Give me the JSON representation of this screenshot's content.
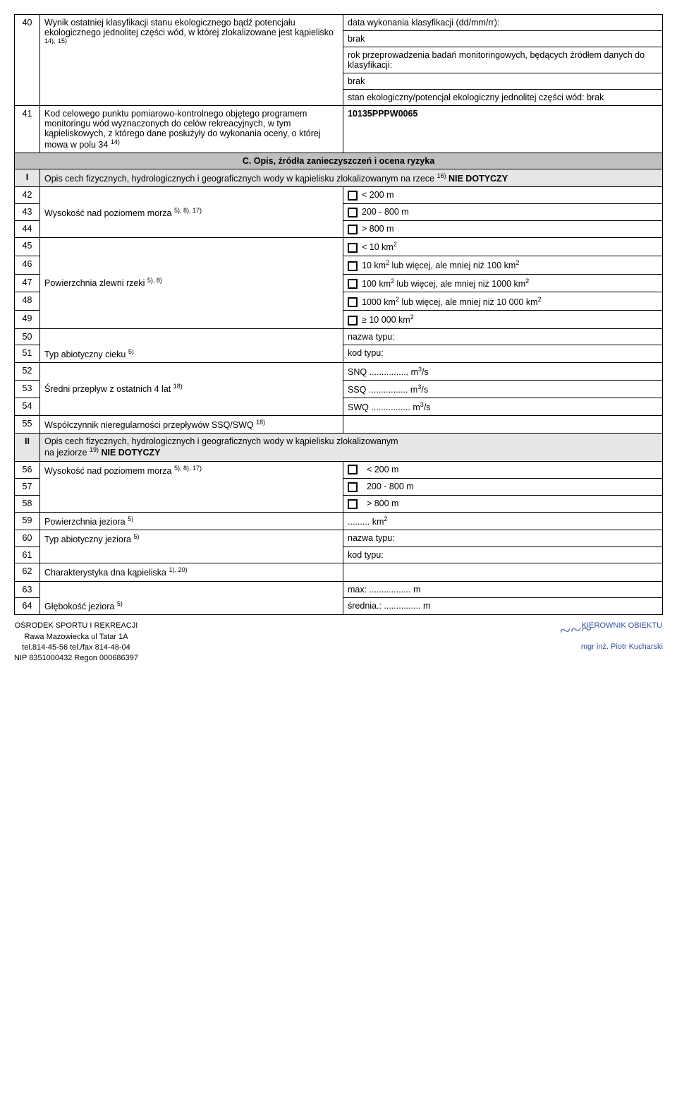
{
  "rows": {
    "r40": {
      "num": "40",
      "label_html": "Wynik ostatniej klasyfikacji stanu ekologicznego bądź potencjału ekologicznego jednolitej części wód, w której zlokalizowane jest kąpielisko <sup>14),</sup> <sup>15)</sup>",
      "v1": "data wykonania klasyfikacji (dd/mm/rr):",
      "v2": "brak",
      "v3": "rok przeprowadzenia badań monitoringowych, będących źródłem danych do klasyfikacji:",
      "v4": "brak",
      "v5": "stan ekologiczny/potencjał ekologiczny jednolitej części wód: brak"
    },
    "r41": {
      "num": "41",
      "label_html": "Kod celowego punktu pomiarowo-kontrolnego objętego programem monitoringu wód wyznaczonych do celów rekreacyjnych, w tym kąpieliskowych, z którego dane posłużyły do wykonania oceny, o której mowa w polu 34 <sup>14)</sup>",
      "val": "10135PPPW0065"
    },
    "sectionC": "C. Opis, źródła zanieczyszczeń i ocena ryzyka",
    "I": {
      "num": "I",
      "text_html": "Opis cech fizycznych, hydrologicznych i geograficznych wody w kąpielisku zlokalizowanym na rzece <sup>16)</sup> <b>NIE DOTYCZY</b>"
    },
    "r42": {
      "num": "42",
      "val": "< 200 m"
    },
    "r43": {
      "num": "43",
      "label_html": "Wysokość nad poziomem morza <sup>5), 8), 17)</sup>",
      "val": "200 - 800 m"
    },
    "r44": {
      "num": "44",
      "val": "> 800 m"
    },
    "r45": {
      "num": "45",
      "val_html": "< 10 km<sup>2</sup>"
    },
    "r46": {
      "num": "46",
      "val_html": "10 km<sup>2</sup> lub więcej, ale mniej niż 100 km<sup>2</sup>"
    },
    "r47": {
      "num": "47",
      "label_html": "Powierzchnia zlewni rzeki <sup>5), 8)</sup>",
      "val_html": "100 km<sup>2</sup> lub więcej, ale mniej niż 1000 km<sup>2</sup>"
    },
    "r48": {
      "num": "48",
      "val_html": "1000 km<sup>2</sup> lub więcej, ale mniej niż 10 000 km<sup>2</sup>"
    },
    "r49": {
      "num": "49",
      "val_html": "≥ 10 000 km<sup>2</sup>"
    },
    "r50": {
      "num": "50",
      "val": "nazwa typu:"
    },
    "r51": {
      "num": "51",
      "label_html": "Typ abiotyczny cieku <sup>5)</sup>",
      "val": "kod typu:"
    },
    "r52": {
      "num": "52",
      "val_html": "SNQ ................ m<sup>3</sup>/s"
    },
    "r53": {
      "num": "53",
      "label_html": "Średni przepływ z ostatnich 4 lat <sup>18)</sup>",
      "val_html": "SSQ ................ m<sup>3</sup>/s"
    },
    "r54": {
      "num": "54",
      "val_html": "SWQ ................ m<sup>3</sup>/s"
    },
    "r55": {
      "num": "55",
      "label_html": "Współczynnik nieregularności przepływów SSQ/SWQ <sup>18)</sup>"
    },
    "II": {
      "num": "II",
      "text_html": "Opis cech fizycznych, hydrologicznych i geograficznych wody w kąpielisku zlokalizowanym<br>na jeziorze <sup>19)</sup> <b>NIE DOTYCZY</b>"
    },
    "r56": {
      "num": "56",
      "label_html": "Wysokość nad poziomem morza <sup>5), 8), 17)</sup>",
      "val": "< 200 m"
    },
    "r57": {
      "num": "57",
      "val": "200 - 800 m"
    },
    "r58": {
      "num": "58",
      "val": "> 800 m"
    },
    "r59": {
      "num": "59",
      "label_html": "Powierzchnia jeziora <sup>5)</sup>",
      "val_html": "......... km<sup>2</sup>"
    },
    "r60": {
      "num": "60",
      "label_html": "Typ abiotyczny jeziora <sup>5)</sup>",
      "val": "nazwa typu:"
    },
    "r61": {
      "num": "61",
      "val": "kod typu:"
    },
    "r62": {
      "num": "62",
      "label_html": "Charakterystyka dna kąpieliska <sup>1), 20)</sup>"
    },
    "r63": {
      "num": "63",
      "val": "max: ................. m"
    },
    "r64": {
      "num": "64",
      "label_html": "Głębokość jeziora <sup>5)</sup>",
      "val": "średnia.: ............... m"
    }
  },
  "footer": {
    "left": {
      "l1": "OŚRODEK SPORTU I REKREACJI",
      "l2": "Rawa Mazowiecka ul Tatar 1A",
      "l3": "tel.814-45-56  tel./fax 814-48-04",
      "l4": "NIP 8351000432  Regon 000686397"
    },
    "right": {
      "l1": "KIEROWNIK OBIEKTU",
      "l2": "mgr inż. Piotr Kucharski"
    }
  },
  "colors": {
    "header_bg": "#bfbfbf",
    "sub_bg": "#e6e6e6",
    "text": "#000000",
    "footer_blue": "#3050a0"
  }
}
